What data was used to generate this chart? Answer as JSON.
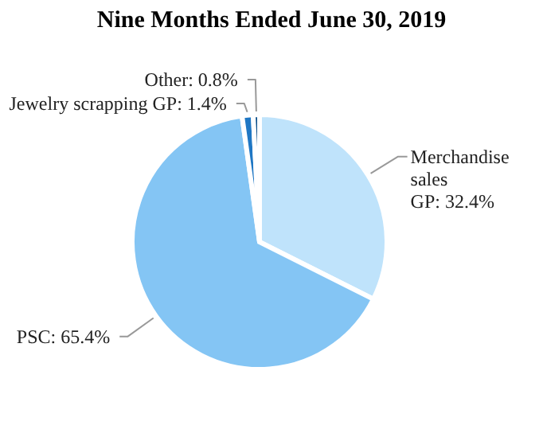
{
  "chart_data": {
    "type": "pie",
    "title": "Nine Months Ended June 30, 2019",
    "categories": [
      "Merchandise sales GP",
      "PSC",
      "Jewelry scrapping GP",
      "Other"
    ],
    "values": [
      32.4,
      65.4,
      1.4,
      0.8
    ],
    "value_labels": [
      "32.4%",
      "65.4%",
      "1.4%",
      "0.8%"
    ],
    "colors": [
      "#bfe3fb",
      "#84c5f4",
      "#1f77c4",
      "#0b4f8a"
    ]
  }
}
